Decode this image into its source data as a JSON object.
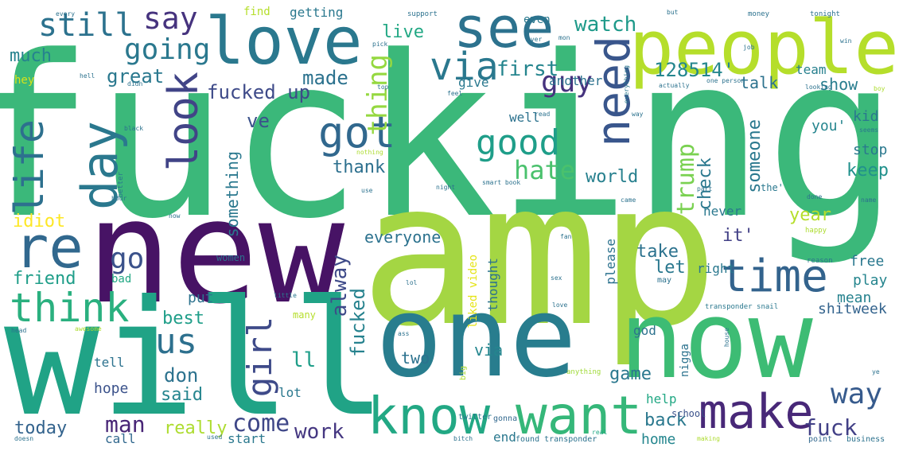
{
  "words": [
    {
      "id": "fucking",
      "text": "fucking",
      "color": "#3bb87a"
    },
    {
      "id": "amp",
      "text": "amp",
      "color": "#a4d643"
    },
    {
      "id": "new",
      "text": "new",
      "color": "#471365"
    },
    {
      "id": "will",
      "text": "will",
      "color": "#20a386"
    },
    {
      "id": "one",
      "text": "one",
      "color": "#287d8e"
    },
    {
      "id": "now",
      "text": "now",
      "color": "#3dbc74"
    },
    {
      "id": "people",
      "text": "people",
      "color": "#b5de2b"
    },
    {
      "id": "love",
      "text": "love",
      "color": "#2a788e"
    },
    {
      "id": "see",
      "text": "see",
      "color": "#2c728e"
    },
    {
      "id": "know",
      "text": "know",
      "color": "#22a884"
    },
    {
      "id": "want",
      "text": "want",
      "color": "#35b779"
    },
    {
      "id": "make",
      "text": "make",
      "color": "#482878"
    },
    {
      "id": "time",
      "text": "time",
      "color": "#33638d"
    },
    {
      "id": "re",
      "text": "re",
      "color": "#31688e"
    },
    {
      "id": "day",
      "text": "day",
      "color": "#2a788e"
    },
    {
      "id": "need",
      "text": "need",
      "color": "#39568c"
    },
    {
      "id": "think",
      "text": "think",
      "color": "#2ab07f"
    },
    {
      "id": "got",
      "text": "got",
      "color": "#31688e"
    },
    {
      "id": "via",
      "text": "via",
      "color": "#2a788e"
    },
    {
      "id": "look",
      "text": "look",
      "color": "#414487"
    },
    {
      "id": "life",
      "text": "life",
      "color": "#2d708e"
    },
    {
      "id": "still",
      "text": "still",
      "color": "#2c728e"
    },
    {
      "id": "say",
      "text": "say",
      "color": "#46337e"
    },
    {
      "id": "good",
      "text": "good",
      "color": "#1f9e89"
    },
    {
      "id": "us",
      "text": "us",
      "color": "#2d708e"
    },
    {
      "id": "girl",
      "text": "girl",
      "color": "#3e4a89"
    },
    {
      "id": "way",
      "text": "way",
      "color": "#375b8d"
    },
    {
      "id": "going",
      "text": "going",
      "color": "#2a788e"
    },
    {
      "id": "guy",
      "text": "guy",
      "color": "#46337e"
    },
    {
      "id": "thing",
      "text": "thing",
      "color": "#95d840"
    },
    {
      "id": "hate",
      "text": "hate",
      "color": "#4ac16d"
    },
    {
      "id": "trump",
      "text": "trump",
      "color": "#7ad151"
    },
    {
      "id": "fuck",
      "text": "fuck",
      "color": "#424086"
    },
    {
      "id": "come",
      "text": "come",
      "color": "#3f4788"
    },
    {
      "id": "man",
      "text": "man",
      "color": "#482576"
    },
    {
      "id": "work",
      "text": "work",
      "color": "#453781"
    },
    {
      "id": "go",
      "text": "go",
      "color": "#3b528b"
    },
    {
      "id": "watch",
      "text": "watch",
      "color": "#1f9a8a"
    },
    {
      "id": "live",
      "text": "live",
      "color": "#22a884"
    },
    {
      "id": "first",
      "text": "first",
      "color": "#25858e"
    },
    {
      "id": "made",
      "text": "made",
      "color": "#2c728e"
    },
    {
      "id": "great",
      "text": "great",
      "color": "#2a788e"
    },
    {
      "id": "much",
      "text": "much",
      "color": "#26828e"
    },
    {
      "id": "fucked-up",
      "text": "fucked up",
      "color": "#3e4a89"
    },
    {
      "id": "ve",
      "text": "ve",
      "color": "#3b528b"
    },
    {
      "id": "128514",
      "text": "128514'",
      "color": "#24868e"
    },
    {
      "id": "world",
      "text": "world",
      "color": "#27808e"
    },
    {
      "id": "check",
      "text": "check",
      "color": "#2a788e"
    },
    {
      "id": "keep",
      "text": "keep",
      "color": "#21918c"
    },
    {
      "id": "thank",
      "text": "thank",
      "color": "#2d708e"
    },
    {
      "id": "someone",
      "text": "someone",
      "color": "#2a788e"
    },
    {
      "id": "year",
      "text": "year",
      "color": "#b5de2b"
    },
    {
      "id": "show",
      "text": "show",
      "color": "#287d8e"
    },
    {
      "id": "talk",
      "text": "talk",
      "color": "#2c728e"
    },
    {
      "id": "take",
      "text": "take",
      "color": "#2c728e"
    },
    {
      "id": "let",
      "text": "let",
      "color": "#2a788e"
    },
    {
      "id": "it",
      "text": "it'",
      "color": "#424086"
    },
    {
      "id": "alway",
      "text": "alway",
      "color": "#3e4a89"
    },
    {
      "id": "fucked",
      "text": "fucked",
      "color": "#26828e"
    },
    {
      "id": "don",
      "text": "don",
      "color": "#2c728e"
    },
    {
      "id": "ll",
      "text": "ll",
      "color": "#1f9e89"
    },
    {
      "id": "said",
      "text": "said",
      "color": "#25858e"
    },
    {
      "id": "best",
      "text": "best",
      "color": "#1f9e89"
    },
    {
      "id": "friend",
      "text": "friend",
      "color": "#1f9e89"
    },
    {
      "id": "idiot",
      "text": "idiot",
      "color": "#fde725"
    },
    {
      "id": "game",
      "text": "game",
      "color": "#2a788e"
    },
    {
      "id": "back",
      "text": "back",
      "color": "#2a788e"
    },
    {
      "id": "really",
      "text": "really",
      "color": "#addc30"
    },
    {
      "id": "today",
      "text": "today",
      "color": "#33638d"
    },
    {
      "id": "home",
      "text": "home",
      "color": "#24868e"
    },
    {
      "id": "help",
      "text": "help",
      "color": "#22a884"
    },
    {
      "id": "two",
      "text": "two",
      "color": "#2c728e"
    },
    {
      "id": "via2",
      "text": "via",
      "color": "#24868e"
    },
    {
      "id": "everyone",
      "text": "everyone",
      "color": "#2c728e"
    },
    {
      "id": "something",
      "text": "something",
      "color": "#2a788e"
    },
    {
      "id": "please",
      "text": "please",
      "color": "#2c728e"
    },
    {
      "id": "play",
      "text": "play",
      "color": "#25858e"
    },
    {
      "id": "free",
      "text": "free",
      "color": "#2a788e"
    },
    {
      "id": "mean",
      "text": "mean",
      "color": "#26828e"
    },
    {
      "id": "shitweek",
      "text": "shitweek",
      "color": "#33638d"
    },
    {
      "id": "stop",
      "text": "stop",
      "color": "#2a788e"
    },
    {
      "id": "kid",
      "text": "kid",
      "color": "#2a788e"
    },
    {
      "id": "you",
      "text": "you'",
      "color": "#25858e"
    },
    {
      "id": "team",
      "text": "team",
      "color": "#27808e"
    },
    {
      "id": "another",
      "text": "another",
      "color": "#2c728e"
    },
    {
      "id": "give",
      "text": "give",
      "color": "#2a788e"
    },
    {
      "id": "well",
      "text": "well",
      "color": "#2c728e"
    },
    {
      "id": "put",
      "text": "put",
      "color": "#2c728e"
    },
    {
      "id": "hope",
      "text": "hope",
      "color": "#3b528b"
    },
    {
      "id": "tell",
      "text": "tell",
      "color": "#2c728e"
    },
    {
      "id": "lot",
      "text": "lot",
      "color": "#2a788e"
    },
    {
      "id": "start",
      "text": "start",
      "color": "#2a788e"
    },
    {
      "id": "end",
      "text": "end",
      "color": "#2a788e"
    },
    {
      "id": "call",
      "text": "call",
      "color": "#31688e"
    },
    {
      "id": "never",
      "text": "never",
      "color": "#2a788e"
    },
    {
      "id": "right",
      "text": "right",
      "color": "#2a788e"
    },
    {
      "id": "god",
      "text": "god",
      "color": "#2c728e"
    },
    {
      "id": "thought",
      "text": "thought",
      "color": "#2c728e"
    },
    {
      "id": "liked-video",
      "text": "liked video",
      "color": "#e5e419"
    },
    {
      "id": "bad",
      "text": "bad",
      "color": "#22a884"
    },
    {
      "id": "women",
      "text": "women",
      "color": "#2c728e"
    },
    {
      "id": "nigga",
      "text": "nigga",
      "color": "#2c728e"
    },
    {
      "id": "getting",
      "text": "getting",
      "color": "#2a788e"
    },
    {
      "id": "find",
      "text": "find",
      "color": "#b5de2b"
    },
    {
      "id": "even",
      "text": "even",
      "color": "#2a788e"
    },
    {
      "id": "hey",
      "text": "hey",
      "color": "#d8e219"
    },
    {
      "id": "many",
      "text": "many",
      "color": "#b5de2b"
    },
    {
      "id": "school",
      "text": "school",
      "color": "#3b528b"
    },
    {
      "id": "twitter",
      "text": "twitter",
      "color": "#2a788e"
    },
    {
      "id": "gonna",
      "text": "gonna",
      "color": "#31688e"
    },
    {
      "id": "found-transponder",
      "text": "found transponder",
      "color": "#2c728e"
    },
    {
      "id": "business",
      "text": "business",
      "color": "#2c728e"
    },
    {
      "id": "point",
      "text": "point",
      "color": "#31688e"
    },
    {
      "id": "transponder-snail",
      "text": "transponder snail",
      "color": "#2a788e"
    },
    {
      "id": "reason",
      "text": "reason",
      "color": "#2c728e"
    },
    {
      "id": "happy",
      "text": "happy",
      "color": "#addc30"
    },
    {
      "id": "anything",
      "text": "anything",
      "color": "#a0da39"
    },
    {
      "id": "everything",
      "text": "everything",
      "color": "#2a788e"
    },
    {
      "id": "actually",
      "text": "actually",
      "color": "#2c728e"
    },
    {
      "id": "one-person",
      "text": "one person",
      "color": "#2c728e"
    },
    {
      "id": "looking",
      "text": "looking",
      "color": "#2c728e"
    },
    {
      "id": "tonight",
      "text": "tonight",
      "color": "#2c728e"
    },
    {
      "id": "money",
      "text": "money",
      "color": "#2c728e"
    },
    {
      "id": "support",
      "text": "support",
      "color": "#2c728e"
    },
    {
      "id": "every",
      "text": "every",
      "color": "#2c728e"
    },
    {
      "id": "job",
      "text": "job",
      "color": "#2c728e"
    },
    {
      "id": "the",
      "text": "the'",
      "color": "#2a788e"
    },
    {
      "id": "part",
      "text": "part",
      "color": "#2c728e"
    },
    {
      "id": "black",
      "text": "black",
      "color": "#2c728e"
    },
    {
      "id": "better",
      "text": "better",
      "color": "#2a788e"
    },
    {
      "id": "house",
      "text": "house",
      "color": "#2c728e"
    },
    {
      "id": "real",
      "text": "real",
      "color": "#22a884"
    },
    {
      "id": "little",
      "text": "little",
      "color": "#2a788e"
    },
    {
      "id": "used",
      "text": "used",
      "color": "#2c728e"
    },
    {
      "id": "doesn",
      "text": "doesn",
      "color": "#2c728e"
    },
    {
      "id": "making",
      "text": "making",
      "color": "#addc30"
    },
    {
      "id": "bitch",
      "text": "bitch",
      "color": "#2c728e"
    },
    {
      "id": "came",
      "text": "came",
      "color": "#2c728e"
    },
    {
      "id": "name",
      "text": "name",
      "color": "#2c728e"
    },
    {
      "id": "seems",
      "text": "seems",
      "color": "#2a788e"
    },
    {
      "id": "hell",
      "text": "hell",
      "color": "#2c728e"
    },
    {
      "id": "head",
      "text": "head",
      "color": "#2c728e"
    },
    {
      "id": "fan",
      "text": "fan",
      "color": "#2c728e"
    },
    {
      "id": "lol",
      "text": "lol",
      "color": "#2c728e"
    },
    {
      "id": "win",
      "text": "win",
      "color": "#2c728e"
    },
    {
      "id": "sex",
      "text": "sex",
      "color": "#2c728e"
    },
    {
      "id": "big",
      "text": "big",
      "color": "#addc30"
    },
    {
      "id": "feel",
      "text": "feel",
      "color": "#2c728e"
    },
    {
      "id": "read",
      "text": "read",
      "color": "#2c728e"
    },
    {
      "id": "night",
      "text": "night",
      "color": "#2c728e"
    },
    {
      "id": "use",
      "text": "use",
      "color": "#2c728e"
    },
    {
      "id": "smart-book",
      "text": "smart book",
      "color": "#2c728e"
    },
    {
      "id": "nothing",
      "text": "nothing",
      "color": "#addc30"
    },
    {
      "id": "hour",
      "text": "hour",
      "color": "#2c728e"
    },
    {
      "id": "didn",
      "text": "didn",
      "color": "#2c728e"
    },
    {
      "id": "boy",
      "text": "boy",
      "color": "#addc30"
    },
    {
      "id": "top",
      "text": "top",
      "color": "#2c728e"
    },
    {
      "id": "done",
      "text": "done",
      "color": "#2c728e"
    },
    {
      "id": "say2",
      "text": "ye",
      "color": "#2c728e"
    },
    {
      "id": "love2",
      "text": "love",
      "color": "#2c728e"
    },
    {
      "id": "but",
      "text": "but",
      "color": "#2c728e"
    },
    {
      "id": "ever",
      "text": "ever",
      "color": "#2c728e"
    },
    {
      "id": "pick",
      "text": "pick",
      "color": "#2c728e"
    },
    {
      "id": "way2",
      "text": "way",
      "color": "#2c728e"
    },
    {
      "id": "mon",
      "text": "mon",
      "color": "#2c728e"
    },
    {
      "id": "awesome",
      "text": "awesome",
      "color": "#addc30"
    },
    {
      "id": "ass",
      "text": "ass",
      "color": "#2c728e"
    },
    {
      "id": "maybe",
      "text": "may",
      "color": "#2c728e"
    },
    {
      "id": "now2",
      "text": "now",
      "color": "#2c728e"
    }
  ]
}
